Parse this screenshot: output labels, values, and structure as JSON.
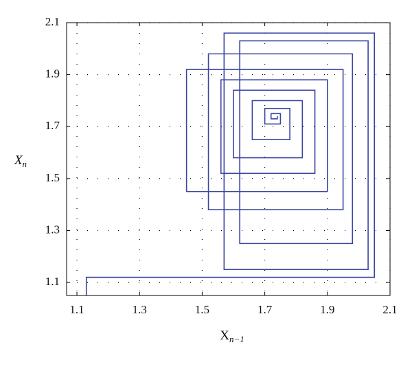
{
  "chart_data": {
    "type": "line",
    "x_label": {
      "base": "X",
      "sub": "n−1"
    },
    "y_label": {
      "base": "X",
      "sub": "n"
    },
    "xlim": [
      1.067,
      2.1
    ],
    "ylim": [
      1.05,
      2.1
    ],
    "xticks": [
      1.1,
      1.3,
      1.5,
      1.7,
      1.9,
      2.1
    ],
    "yticks": [
      1.1,
      1.3,
      1.5,
      1.7,
      1.9,
      2.1
    ],
    "grid": true,
    "series": [
      {
        "color": "#3a46a0",
        "x": [
          1.13,
          1.13,
          2.05,
          2.05,
          1.57,
          1.57,
          2.03,
          2.03,
          1.62,
          1.62,
          1.98,
          1.98,
          1.52,
          1.52,
          1.95,
          1.95,
          1.45,
          1.45,
          1.9,
          1.9,
          1.56,
          1.56,
          1.86,
          1.86,
          1.6,
          1.6,
          1.82,
          1.82,
          1.66,
          1.66,
          1.78,
          1.78,
          1.7,
          1.7,
          1.75,
          1.75,
          1.72,
          1.72,
          1.74,
          1.74
        ],
        "values": [
          1.05,
          1.12,
          1.12,
          2.06,
          2.06,
          1.15,
          1.15,
          2.03,
          2.03,
          1.25,
          1.25,
          1.98,
          1.98,
          1.38,
          1.38,
          1.92,
          1.92,
          1.45,
          1.45,
          1.88,
          1.88,
          1.52,
          1.52,
          1.84,
          1.84,
          1.58,
          1.58,
          1.8,
          1.8,
          1.65,
          1.65,
          1.77,
          1.77,
          1.71,
          1.71,
          1.75,
          1.75,
          1.73,
          1.73,
          1.74
        ]
      }
    ]
  }
}
